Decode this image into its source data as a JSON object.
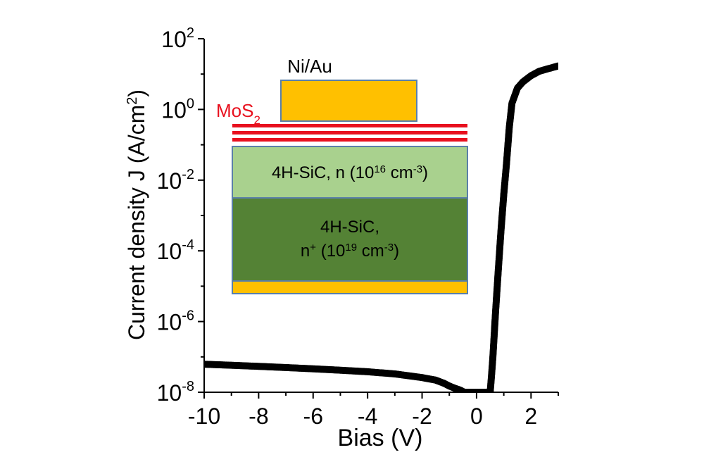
{
  "chart_data": {
    "type": "scatter",
    "xlabel": "Bias (V)",
    "ylabel": "Current density J (A/cm²)",
    "ylabel_parts": {
      "main": "Current density J (A/cm",
      "sup": "2",
      "end": ")"
    },
    "xlim": [
      -10,
      3
    ],
    "ylim": [
      1e-08,
      100
    ],
    "yscale": "log",
    "x_ticks": [
      -10,
      -8,
      -6,
      -4,
      -2,
      0,
      2
    ],
    "x_tick_labels": [
      "-10",
      "-8",
      "-6",
      "-4",
      "-2",
      "0",
      "2"
    ],
    "y_ticks": [
      {
        "value": 1e-08,
        "base": "10",
        "exp": "-8"
      },
      {
        "value": 1e-06,
        "base": "10",
        "exp": "-6"
      },
      {
        "value": 0.0001,
        "base": "10",
        "exp": "-4"
      },
      {
        "value": 0.01,
        "base": "10",
        "exp": "-2"
      },
      {
        "value": 1,
        "base": "10",
        "exp": "0"
      },
      {
        "value": 100,
        "base": "10",
        "exp": "2"
      }
    ],
    "grid": false,
    "series": [
      {
        "color": "#000000",
        "x": [
          -10,
          -9,
          -8,
          -7,
          -6,
          -5,
          -4,
          -3,
          -2,
          -1.5,
          -1.2,
          -1.0,
          -0.8,
          -0.6,
          -0.45,
          0.5,
          0.55,
          0.6,
          0.7,
          0.8,
          0.9,
          1.0,
          1.1,
          1.2,
          1.3,
          1.5,
          1.7,
          2.0,
          2.3,
          2.6,
          3.0
        ],
        "y": [
          6.2e-08,
          5.8e-08,
          5.4e-08,
          5e-08,
          4.6e-08,
          4.2e-08,
          3.8e-08,
          3.3e-08,
          2.6e-08,
          2.2e-08,
          1.8e-08,
          1.5e-08,
          1.3e-08,
          1.15e-08,
          1e-08,
          1e-08,
          3e-08,
          1e-07,
          2e-06,
          3e-05,
          0.0004,
          0.004,
          0.03,
          0.3,
          1.5,
          4,
          6,
          9,
          12,
          14,
          17
        ]
      }
    ]
  },
  "inset": {
    "contact_label": "Ni/Au",
    "mos2_label": {
      "base": "MoS",
      "sub": "2"
    },
    "layer_n": {
      "text": "4H-SiC, n (10",
      "sup1": "16",
      "mid": " cm",
      "sup2": "-3",
      "end": ")"
    },
    "layer_nplus_line1": "4H-SiC,",
    "layer_nplus_line2": {
      "text": "n",
      "sup0": "+",
      "mid": " (10",
      "sup1": "19",
      "mid2": " cm",
      "sup2": "-3",
      "end": ")"
    },
    "colors": {
      "gold": "#FFC000",
      "mos2": "#E8101E",
      "n_layer": "#A9D18E",
      "nplus_layer": "#548235",
      "outline": "#5A7FA8"
    }
  }
}
